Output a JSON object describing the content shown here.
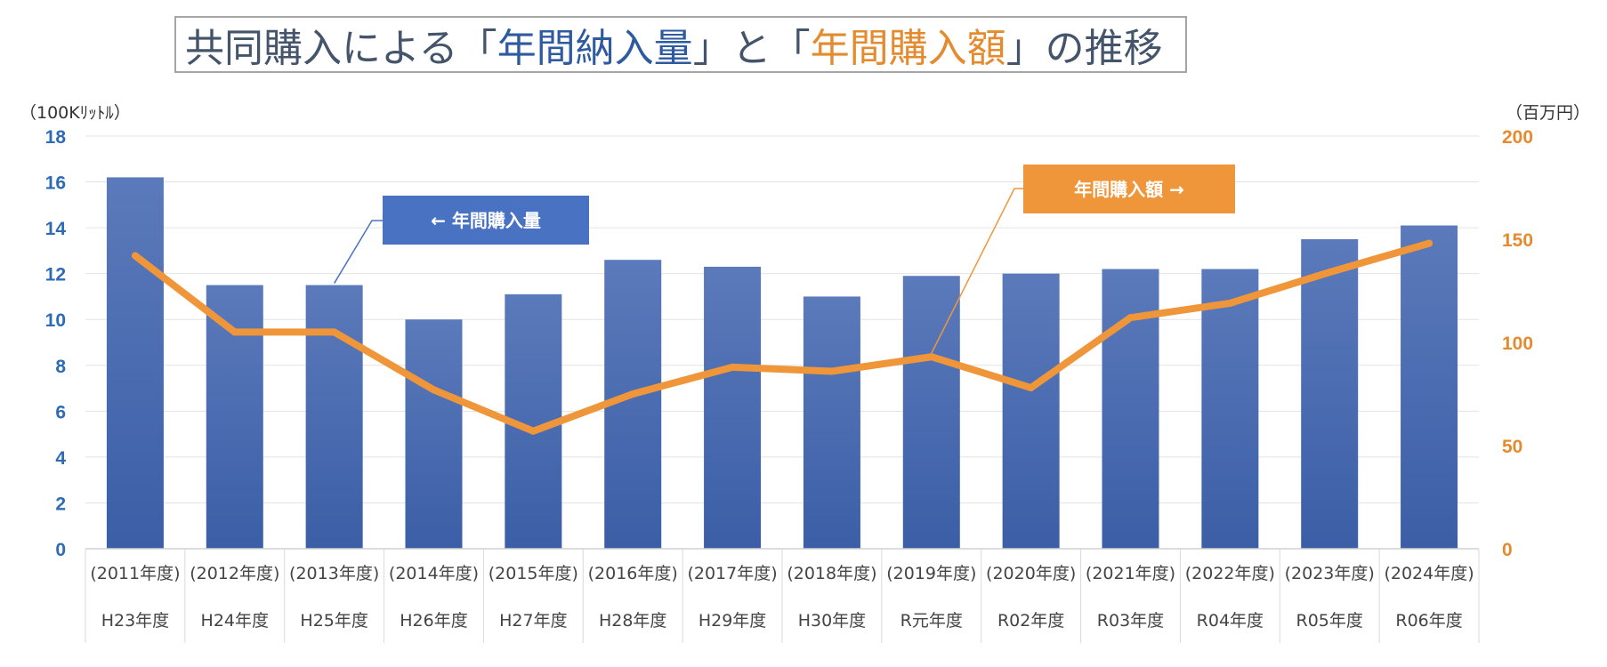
{
  "title": {
    "p1": "共同購入による「",
    "p2": "年間納入量",
    "p3": "」と「",
    "p4": "年間購入額",
    "p5": "」の推移"
  },
  "units": {
    "left": "（100Kﾘｯﾄﾙ）",
    "right": "（百万円）"
  },
  "callouts": {
    "volume": "← 年間購入量",
    "amount": "年間購入額 →"
  },
  "colors": {
    "bar": "#3b5ea6",
    "line": "#f0963a",
    "left_axis": "#2e6bb5",
    "right_axis": "#e58b2f",
    "callout_blue": "#4a72c2",
    "callout_orange": "#f0963a"
  },
  "chart_data": {
    "type": "bar",
    "categories": [
      "(2011年度)",
      "(2012年度)",
      "(2013年度)",
      "(2014年度)",
      "(2015年度)",
      "(2016年度)",
      "(2017年度)",
      "(2018年度)",
      "(2019年度)",
      "(2020年度)",
      "(2021年度)",
      "(2022年度)",
      "(2023年度)",
      "(2024年度)"
    ],
    "categories_jp": [
      "H23年度",
      "H24年度",
      "H25年度",
      "H26年度",
      "H27年度",
      "H28年度",
      "H29年度",
      "H30年度",
      "R元年度",
      "R02年度",
      "R03年度",
      "R04年度",
      "R05年度",
      "R06年度"
    ],
    "series": [
      {
        "name": "年間購入量",
        "type": "bar",
        "axis": "left",
        "values": [
          16.2,
          11.5,
          11.5,
          10.0,
          11.1,
          12.6,
          12.3,
          11.0,
          11.9,
          12.0,
          12.2,
          12.2,
          13.5,
          14.1
        ]
      },
      {
        "name": "年間購入額",
        "type": "line",
        "axis": "right",
        "values": [
          142,
          105,
          105,
          77,
          57,
          75,
          88,
          86,
          93,
          78,
          112,
          119,
          134,
          148
        ]
      }
    ],
    "y_left": {
      "min": 0,
      "max": 18,
      "ticks": [
        0,
        2,
        4,
        6,
        8,
        10,
        12,
        14,
        16,
        18
      ]
    },
    "y_right": {
      "min": 0,
      "max": 200,
      "ticks": [
        0,
        50,
        100,
        150,
        200
      ]
    },
    "grid": true
  }
}
